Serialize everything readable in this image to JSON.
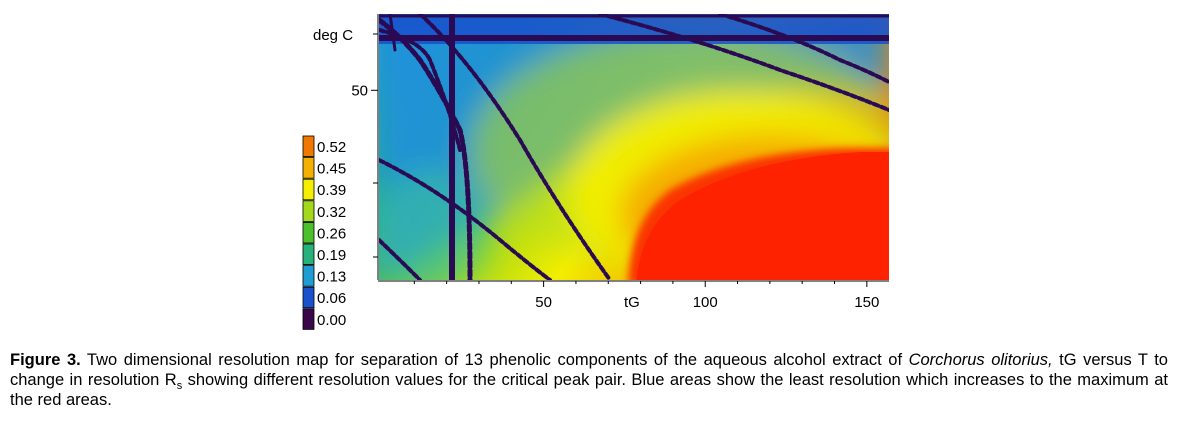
{
  "chart_data": {
    "type": "heatmap",
    "title": "",
    "xlabel": "tG",
    "ylabel": "deg C",
    "xlim": [
      0,
      155
    ],
    "ylim": [
      0,
      70
    ],
    "x_ticks": [
      {
        "value": 50,
        "label": "50"
      },
      {
        "value": 100,
        "label": "100"
      },
      {
        "value": 150,
        "label": "150"
      }
    ],
    "y_ticks": [
      {
        "value": 50,
        "label": "50"
      }
    ],
    "legend": {
      "position": "left",
      "entries": [
        {
          "label": "0.52",
          "color": "#f07800"
        },
        {
          "label": "0.45",
          "color": "#f2b000"
        },
        {
          "label": "0.39",
          "color": "#f4ee00"
        },
        {
          "label": "0.32",
          "color": "#a4d81a"
        },
        {
          "label": "0.26",
          "color": "#4cc02a"
        },
        {
          "label": "0.19",
          "color": "#26b27a"
        },
        {
          "label": "0.13",
          "color": "#1e9cd4"
        },
        {
          "label": "0.06",
          "color": "#1a52cc"
        },
        {
          "label": "0.00",
          "color": "#3a0848"
        }
      ]
    },
    "regions": [
      {
        "description": "Red area (maximum resolution)",
        "x_range": [
          75,
          155
        ],
        "y_range": [
          0,
          38
        ]
      },
      {
        "description": "Blue areas (least resolution)",
        "x_range": [
          0,
          155
        ],
        "y_range": [
          55,
          70
        ]
      }
    ]
  },
  "caption": {
    "label": "Figure 3.",
    "text_1": " Two dimensional resolution map for separation of 13 phenolic components of the aqueous alcohol extract of ",
    "species": "Corchorus olitorius,",
    "text_2": " tG versus T to change in resolution R",
    "subscript": "s",
    "text_3": " showing different resolution values for the critical peak pair. Blue areas show the least resolution which increases to the maximum at the red areas."
  }
}
